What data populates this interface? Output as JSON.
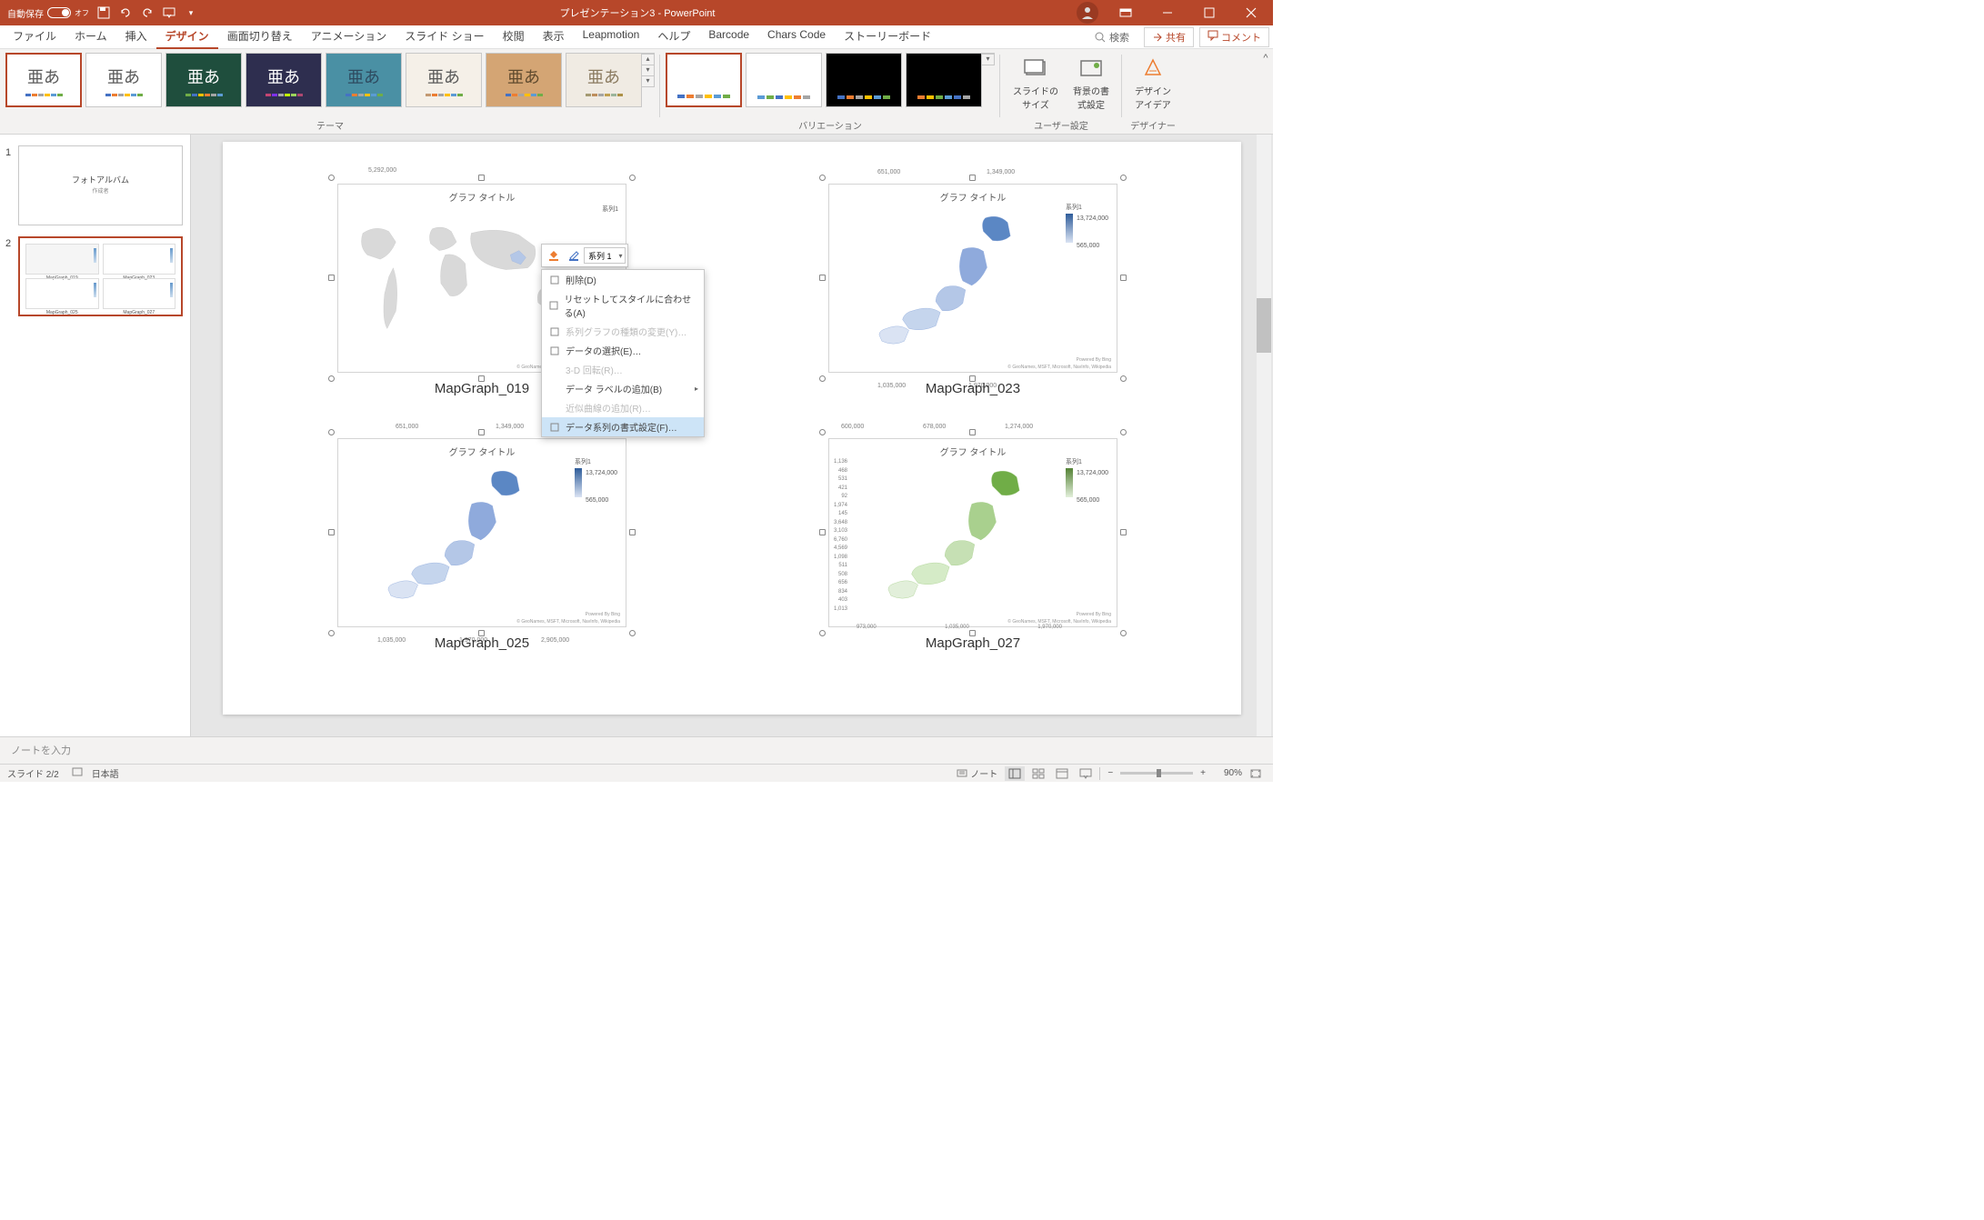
{
  "titlebar": {
    "autosave_label": "自動保存",
    "autosave_state": "オフ",
    "title": "プレゼンテーション3  -  PowerPoint"
  },
  "menu": {
    "tabs": [
      "ファイル",
      "ホーム",
      "挿入",
      "デザイン",
      "画面切り替え",
      "アニメーション",
      "スライド ショー",
      "校閲",
      "表示",
      "Leapmotion",
      "ヘルプ",
      "Barcode",
      "Chars Code",
      "ストーリーボード"
    ],
    "active_index": 3,
    "search_label": "検索",
    "share": "共有",
    "comment": "コメント"
  },
  "ribbon": {
    "themes_label": "テーマ",
    "variations_label": "バリエーション",
    "user_settings_label": "ユーザー設定",
    "designer_label": "デザイナー",
    "slide_size": "スライドの\nサイズ",
    "background_format": "背景の書\n式設定",
    "design_idea": "デザイン\nアイデア",
    "themes": [
      {
        "bg": "#ffffff",
        "fg": "#595959",
        "selected": true,
        "colors": [
          "#4472c4",
          "#ed7d31",
          "#a5a5a5",
          "#ffc000",
          "#5b9bd5",
          "#70ad47"
        ]
      },
      {
        "bg": "#ffffff",
        "fg": "#595959",
        "colors": [
          "#4472c4",
          "#ed7d31",
          "#a5a5a5",
          "#ffc000",
          "#5b9bd5",
          "#70ad47"
        ]
      },
      {
        "bg": "#1f4e3d",
        "fg": "#ffffff",
        "colors": [
          "#70ad47",
          "#4472c4",
          "#ffc000",
          "#ed7d31",
          "#a5a5a5",
          "#5b9bd5"
        ]
      },
      {
        "bg": "#2e2e4f",
        "fg": "#ffffff",
        "colors": [
          "#c44472",
          "#7d31ed",
          "#a5a5a5",
          "#c0ff00",
          "#9bd55b",
          "#ad4770"
        ]
      },
      {
        "bg": "#4a90a4",
        "fg": "#2e4a5f",
        "pattern": true,
        "colors": [
          "#4472c4",
          "#ed7d31",
          "#a5a5a5",
          "#ffc000",
          "#5b9bd5",
          "#70ad47"
        ]
      },
      {
        "bg": "#f5f0e8",
        "fg": "#595959",
        "colors": [
          "#c49a72",
          "#ed7d31",
          "#a5a5a5",
          "#ffc000",
          "#5b9bd5",
          "#70ad47"
        ]
      },
      {
        "bg": "#d4a574",
        "fg": "#5f4a2e",
        "colors": [
          "#4472c4",
          "#ed7d31",
          "#a5a5a5",
          "#ffc000",
          "#5b9bd5",
          "#70ad47"
        ]
      },
      {
        "bg": "#f0ebe3",
        "fg": "#8a7a5f",
        "colors": [
          "#a59a72",
          "#be8e5c",
          "#a5a5a5",
          "#c0a050",
          "#9bb59b",
          "#ad9147"
        ]
      }
    ],
    "variations": [
      {
        "bg": "#ffffff",
        "selected": true,
        "colors": [
          "#4472c4",
          "#ed7d31",
          "#a5a5a5",
          "#ffc000",
          "#5b9bd5",
          "#70ad47"
        ]
      },
      {
        "bg": "#ffffff",
        "colors": [
          "#5b9bd5",
          "#70ad47",
          "#4472c4",
          "#ffc000",
          "#ed7d31",
          "#a5a5a5"
        ]
      },
      {
        "bg": "#000000",
        "colors": [
          "#4472c4",
          "#ed7d31",
          "#a5a5a5",
          "#ffc000",
          "#5b9bd5",
          "#70ad47"
        ]
      },
      {
        "bg": "#000000",
        "colors": [
          "#ed7d31",
          "#ffc000",
          "#70ad47",
          "#5b9bd5",
          "#4472c4",
          "#a5a5a5"
        ]
      }
    ]
  },
  "slides": {
    "items": [
      {
        "num": "1",
        "title": "フォトアルバム",
        "subtitle": "作成者"
      },
      {
        "num": "2",
        "active": true
      }
    ]
  },
  "charts": {
    "common": {
      "chart_title": "グラフ タイトル",
      "series_label": "系列1",
      "attribution_bing": "Powered By Bing",
      "attribution_src": "© GeoNames, MSFT, Microsoft, NavInfo, Wikipedia"
    },
    "c1": {
      "caption": "MapGraph_019",
      "top_coord": "5,292,000",
      "map_type": "world",
      "map_color": "#d9d9d9",
      "highlight_color": "#b4c7e7"
    },
    "c2": {
      "caption": "MapGraph_023",
      "top_coords": [
        "651,000",
        "1,349,000"
      ],
      "bottom_coords": [
        "1,035,000",
        "1,970,000"
      ],
      "legend_max": "13,724,000",
      "legend_min": "565,000",
      "map_type": "japan",
      "gradient_from": "#2e5c9a",
      "gradient_to": "#dae3f3"
    },
    "c3": {
      "caption": "MapGraph_025",
      "top_coords": [
        "651,000",
        "1,349,000"
      ],
      "bottom_coords": [
        "1,035,000",
        "1,970,000",
        "2,905,000"
      ],
      "legend_max": "13,724,000",
      "legend_min": "565,000",
      "map_type": "japan",
      "gradient_from": "#2e5c9a",
      "gradient_to": "#dae3f3"
    },
    "c4": {
      "caption": "MapGraph_027",
      "top_coords": [
        "600,000",
        "678,000",
        "1,274,000"
      ],
      "legend_max": "13,724,000",
      "legend_min": "565,000",
      "map_type": "japan",
      "gradient_from": "#548235",
      "gradient_to": "#e2efda",
      "y_labels": [
        "1,136",
        "468",
        "531",
        "421",
        "92",
        "1,974",
        "145",
        "3,648",
        "3,103",
        "6,760",
        "4,569",
        "1,098",
        "511",
        "508",
        "656",
        "834",
        "403",
        "1,013"
      ],
      "x_labels": [
        "973,000",
        "1,035,000",
        "1,970,000"
      ]
    }
  },
  "context_toolbar": {
    "combo_label": "系列 1"
  },
  "context_menu": {
    "items": [
      {
        "label": "削除(D)",
        "icon": "scissors"
      },
      {
        "label": "リセットしてスタイルに合わせる(A)",
        "icon": "reset"
      },
      {
        "label": "系列グラフの種類の変更(Y)…",
        "icon": "chart",
        "disabled": true
      },
      {
        "label": "データの選択(E)…",
        "icon": "select"
      },
      {
        "label": "3-D 回転(R)…",
        "disabled": true
      },
      {
        "label": "データ ラベルの追加(B)",
        "arrow": true
      },
      {
        "label": "近似曲線の追加(R)…",
        "disabled": true
      },
      {
        "label": "データ系列の書式設定(F)…",
        "icon": "format",
        "highlighted": true
      }
    ]
  },
  "notes": {
    "placeholder": "ノートを入力"
  },
  "status": {
    "slide_info": "スライド 2/2",
    "language": "日本語",
    "notes_btn": "ノート",
    "zoom": "90%"
  },
  "colors": {
    "accent": "#b7472a",
    "ribbon_bg": "#f3f2f1",
    "editor_bg": "#e6e6e6"
  }
}
